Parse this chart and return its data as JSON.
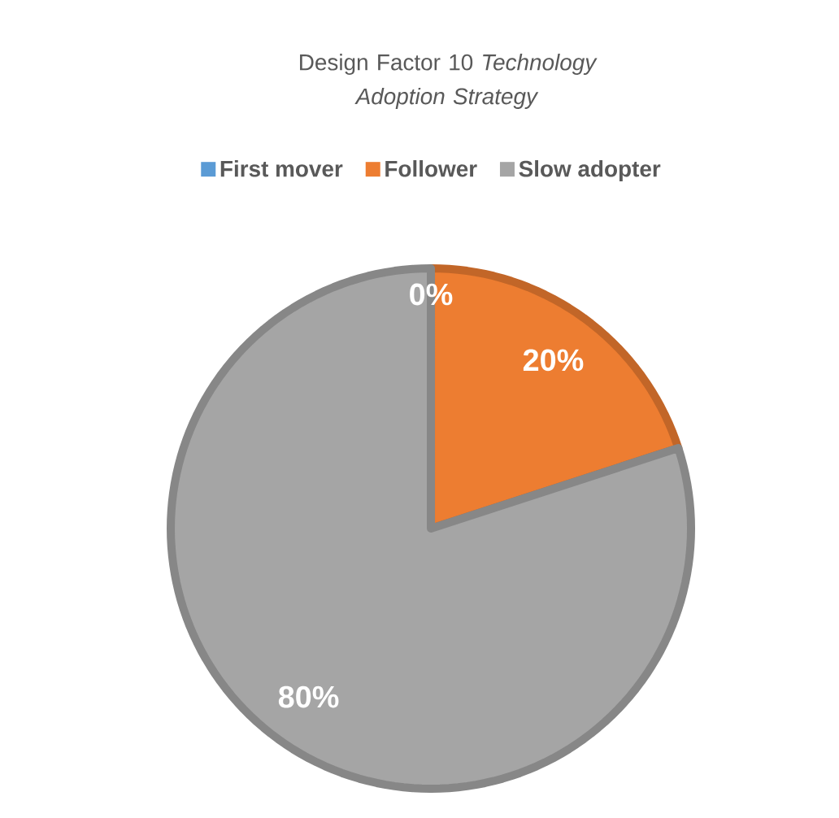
{
  "chart_data": {
    "type": "pie",
    "title": "Design Factor 10 *Technology Adoption Strategy*",
    "categories": [
      "First mover",
      "Follower",
      "Slow adopter"
    ],
    "values": [
      0,
      20,
      80
    ],
    "colors": [
      "#5b9bd5",
      "#ed7d31",
      "#a5a5a5"
    ],
    "value_labels": [
      "0%",
      "20%",
      "80%"
    ],
    "legend": "top"
  }
}
